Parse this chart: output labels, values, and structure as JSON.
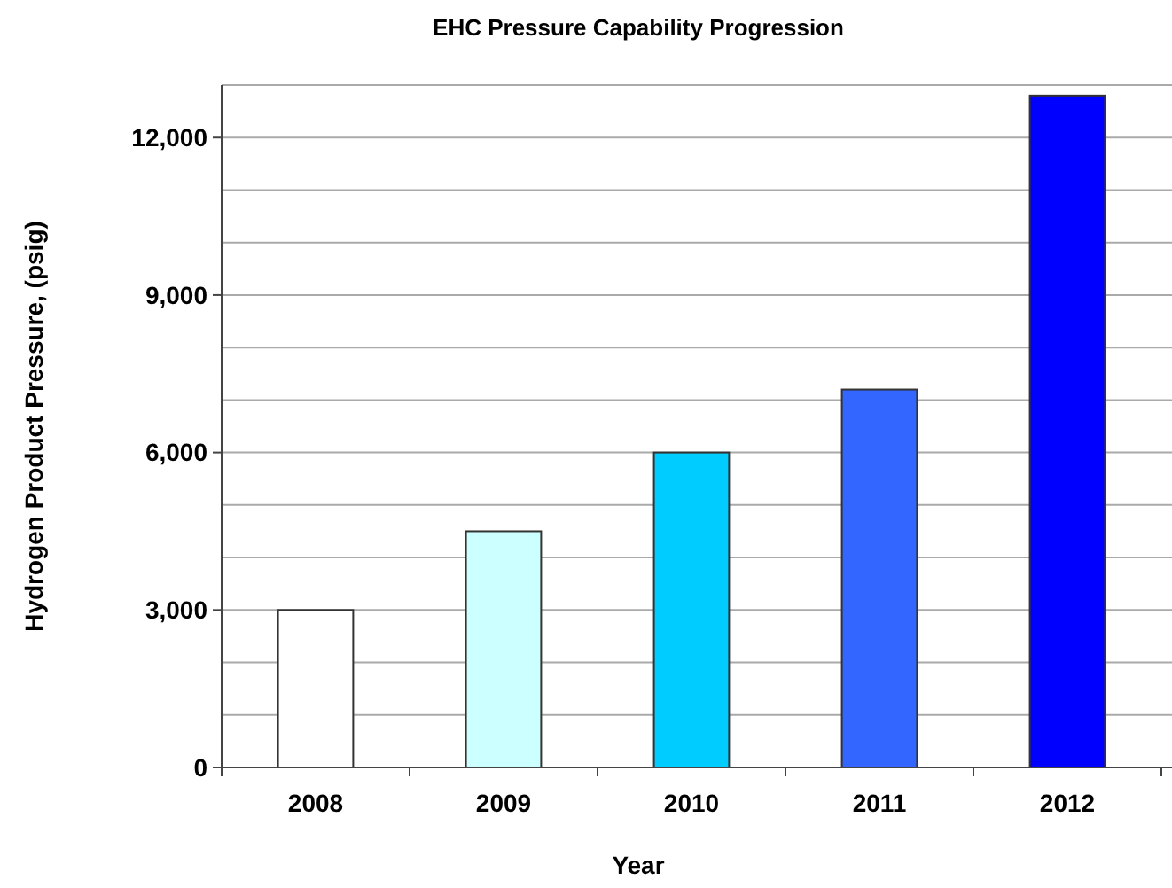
{
  "chart_data": {
    "type": "bar",
    "title": "EHC Pressure Capability Progression",
    "xlabel": "Year",
    "ylabel": "Hydrogen Product Pressure, (psig)",
    "categories": [
      "2008",
      "2009",
      "2010",
      "2011",
      "2012"
    ],
    "values": [
      3000,
      4500,
      6000,
      7200,
      12800
    ],
    "colors": [
      "#ffffff",
      "#ccffff",
      "#00ccff",
      "#3366ff",
      "#0000ff"
    ],
    "ylim": [
      0,
      13000
    ],
    "yticks": [
      {
        "value": 0,
        "label": "0"
      },
      {
        "value": 1000,
        "label": null
      },
      {
        "value": 2000,
        "label": null
      },
      {
        "value": 3000,
        "label": "3,000"
      },
      {
        "value": 4000,
        "label": null
      },
      {
        "value": 5000,
        "label": null
      },
      {
        "value": 6000,
        "label": "6,000"
      },
      {
        "value": 7000,
        "label": null
      },
      {
        "value": 8000,
        "label": null
      },
      {
        "value": 9000,
        "label": "9,000"
      },
      {
        "value": 10000,
        "label": null
      },
      {
        "value": 11000,
        "label": null
      },
      {
        "value": 12000,
        "label": "12,000"
      },
      {
        "value": 13000,
        "label": null
      }
    ],
    "grid": "y"
  }
}
